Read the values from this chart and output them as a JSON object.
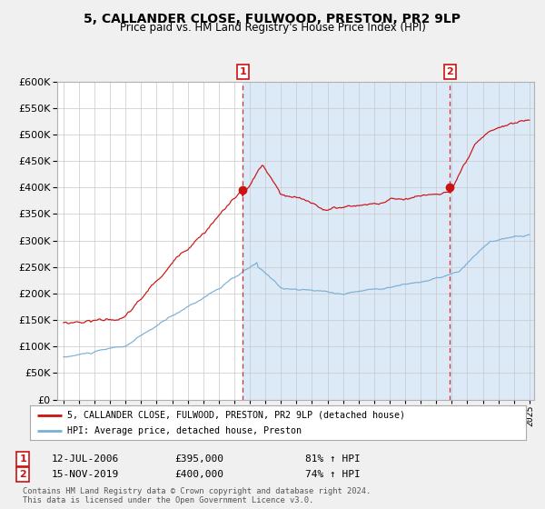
{
  "title": "5, CALLANDER CLOSE, FULWOOD, PRESTON, PR2 9LP",
  "subtitle": "Price paid vs. HM Land Registry's House Price Index (HPI)",
  "red_label": "5, CALLANDER CLOSE, FULWOOD, PRESTON, PR2 9LP (detached house)",
  "blue_label": "HPI: Average price, detached house, Preston",
  "annotation1_date": "12-JUL-2006",
  "annotation1_price": "£395,000",
  "annotation1_hpi": "81% ↑ HPI",
  "annotation2_date": "15-NOV-2019",
  "annotation2_price": "£400,000",
  "annotation2_hpi": "74% ↑ HPI",
  "footer": "Contains HM Land Registry data © Crown copyright and database right 2024.\nThis data is licensed under the Open Government Licence v3.0.",
  "bg_color": "#f0f0f0",
  "plot_bg": "#ffffff",
  "span_bg": "#dce9f7",
  "red_color": "#cc1111",
  "blue_color": "#7bafd4",
  "dashed_color": "#cc3333",
  "ylim": [
    0,
    600000
  ],
  "ytick_step": 50000,
  "sale1_year": 2006.542,
  "sale1_price": 395000,
  "sale2_year": 2019.875,
  "sale2_price": 400000
}
